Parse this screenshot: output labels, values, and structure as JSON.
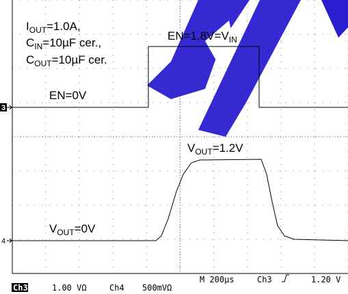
{
  "annotations": [
    [
      "I",
      "OUT",
      "=1.0A,"
    ],
    [
      "C",
      "IN",
      "=10µF cer.,"
    ],
    [
      "C",
      "OUT",
      "=10µF cer."
    ],
    [
      "EN=0V"
    ],
    [
      "EN=1.8V=V",
      "IN"
    ],
    [
      "V",
      "OUT",
      "=1.2V"
    ],
    [
      "V",
      "OUT",
      "=0V"
    ]
  ],
  "markers": [
    "3",
    "4"
  ],
  "status": {
    "ch_a": "Ch3",
    "ch_a_scale": "1.00 VΩ",
    "ch_b": "Ch4",
    "ch_b_scale": "500mVΩ",
    "timebase": "M 200µs",
    "trigger_source": "Ch3",
    "trigger_level": "1.20 V"
  }
}
